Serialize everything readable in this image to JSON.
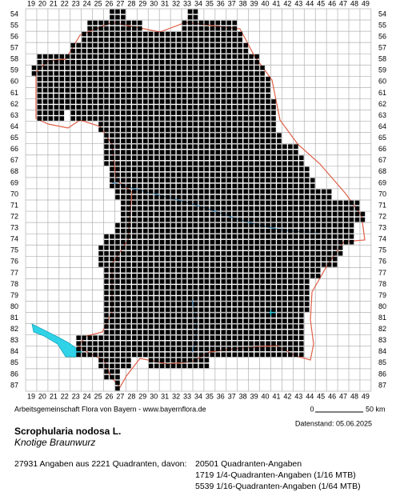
{
  "map": {
    "columns": [
      19,
      20,
      21,
      22,
      23,
      24,
      25,
      26,
      27,
      28,
      29,
      30,
      31,
      32,
      33,
      34,
      35,
      36,
      37,
      38,
      39,
      40,
      41,
      42,
      43,
      44,
      45,
      46,
      47,
      48,
      49
    ],
    "rows": [
      54,
      55,
      56,
      57,
      58,
      59,
      60,
      61,
      62,
      63,
      64,
      65,
      66,
      67,
      68,
      69,
      70,
      71,
      72,
      73,
      74,
      75,
      76,
      77,
      78,
      79,
      80,
      81,
      82,
      83,
      84,
      85,
      86,
      87
    ]
  },
  "footer": {
    "credit": "Arbeitsgemeinschaft Flora von Bayern - www.bayernflora.de",
    "scale_start": "0",
    "scale_end": "50 km",
    "date": "Datenstand: 05.06.2025"
  },
  "species": {
    "name": "Scrophularia nodosa L.",
    "common_name": "Knotige Braunwurz"
  },
  "stats": {
    "total": "27931 Angaben aus 2221 Quadranten, davon:",
    "quadrants": "20501 Quadranten-Angaben",
    "quarter": "1719 1/4-Quadranten-Angaben (1/16 MTB)",
    "sixteenth": "5539 1/16-Quadranten-Angaben (1/64 MTB)"
  }
}
